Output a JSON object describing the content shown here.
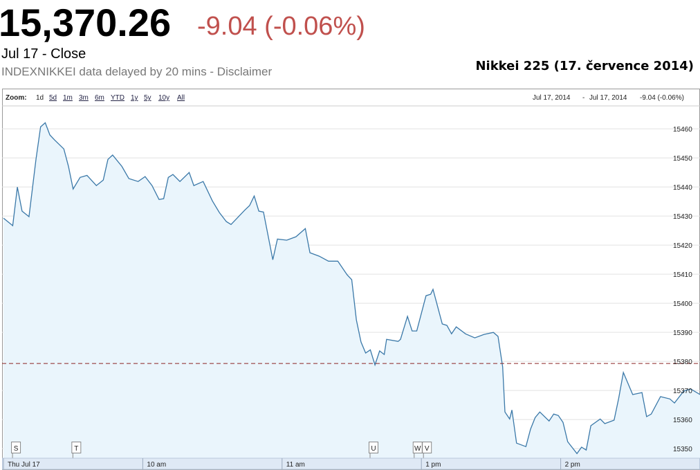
{
  "header": {
    "price": "15,370.26",
    "change": "-9.04 (-0.06%)",
    "close_label": "Jul 17 - Close",
    "delay_note": "INDEXNIKKEI data delayed by 20 mins - Disclaimer"
  },
  "toolbar": {
    "zoom_label": "Zoom:",
    "zoom_options": [
      "1d",
      "5d",
      "1m",
      "3m",
      "6m",
      "YTD",
      "1y",
      "5y",
      "10y",
      "All"
    ],
    "range_start": "Jul 17, 2014",
    "range_separator": "-",
    "range_end": "Jul 17, 2014"
  },
  "chart_data": {
    "type": "area",
    "title": "Nikkei 225 (17. července 2014)",
    "x": [
      0,
      4,
      6,
      8,
      11,
      14,
      16,
      18,
      20,
      22,
      26,
      28,
      30,
      33,
      36,
      40,
      43,
      45,
      47,
      51,
      54,
      58,
      61,
      64,
      67,
      69,
      71,
      73,
      76,
      80,
      82,
      86,
      90,
      93,
      96,
      98,
      104,
      106,
      108,
      110,
      112,
      116,
      118,
      122,
      126,
      130,
      132,
      136,
      140,
      144,
      148,
      150,
      152,
      154,
      156,
      158,
      160,
      162,
      164,
      165,
      170,
      171,
      174,
      176,
      178,
      182,
      184,
      185,
      189,
      191,
      193,
      195,
      199,
      203,
      207,
      211,
      213,
      215,
      216,
      218,
      219,
      221,
      225,
      227,
      229,
      231,
      235,
      237,
      239,
      241,
      243,
      247,
      249,
      251,
      253,
      257,
      259,
      263,
      265,
      267,
      271,
      275,
      277,
      279,
      283,
      287,
      289,
      293,
      296,
      300
    ],
    "values": [
      15429.3,
      15426.7,
      15440.0,
      15431.7,
      15429.8,
      15449.5,
      15460.7,
      15462.1,
      15457.9,
      15456.2,
      15453.1,
      15447.1,
      15439.3,
      15443.3,
      15444.0,
      15440.5,
      15442.4,
      15449.5,
      15451.0,
      15447.1,
      15442.9,
      15441.9,
      15443.6,
      15440.5,
      15435.7,
      15436.0,
      15443.3,
      15444.3,
      15441.9,
      15445.0,
      15440.5,
      15441.9,
      15435.2,
      15431.2,
      15428.1,
      15427.1,
      15432.1,
      15433.6,
      15436.9,
      15431.7,
      15431.4,
      15415.0,
      15422.1,
      15421.7,
      15422.9,
      15425.7,
      15417.4,
      15416.2,
      15414.5,
      15414.5,
      15409.8,
      15408.1,
      15394.3,
      15386.7,
      15382.9,
      15384.0,
      15378.8,
      15383.6,
      15382.4,
      15387.6,
      15386.9,
      15387.6,
      15395.5,
      15390.5,
      15390.5,
      15402.6,
      15403.1,
      15404.8,
      15392.9,
      15392.4,
      15389.5,
      15391.9,
      15389.5,
      15388.1,
      15389.3,
      15390.0,
      15388.6,
      15378.1,
      15362.6,
      15360.2,
      15363.3,
      15351.9,
      15350.7,
      15356.7,
      15360.7,
      15362.6,
      15359.5,
      15361.9,
      15361.4,
      15359.0,
      15352.4,
      15348.3,
      15350.5,
      15349.5,
      15357.9,
      15360.2,
      15358.6,
      15359.8,
      15367.4,
      15376.2,
      15368.6,
      15369.3,
      15361.0,
      15361.9,
      15367.9,
      15367.1,
      15365.7,
      15369.8,
      15370.5,
      15368.6
    ],
    "line_color": "#3a78a8",
    "fill_color": "#eaf5fc",
    "reference_line": 15379.3,
    "reference_color": "#8b2323",
    "xlim": [
      0,
      300
    ],
    "xticks": [
      {
        "value": 0,
        "label": "Thu Jul 17"
      },
      {
        "value": 60,
        "label": "10 am"
      },
      {
        "value": 120,
        "label": "11 am"
      },
      {
        "value": 180,
        "label": "1 pm"
      },
      {
        "value": 240,
        "label": "2 pm"
      }
    ],
    "ylim": [
      15346.7,
      15467.9
    ],
    "yticks": [
      15350,
      15360,
      15370,
      15380,
      15390,
      15400,
      15410,
      15420,
      15430,
      15440,
      15450,
      15460
    ],
    "grid": true,
    "annotations": [
      {
        "label": "S",
        "x": 3
      },
      {
        "label": "T",
        "x": 29
      },
      {
        "label": "U",
        "x": 157
      },
      {
        "label": "W",
        "x": 176
      },
      {
        "label": "V",
        "x": 180
      }
    ]
  }
}
